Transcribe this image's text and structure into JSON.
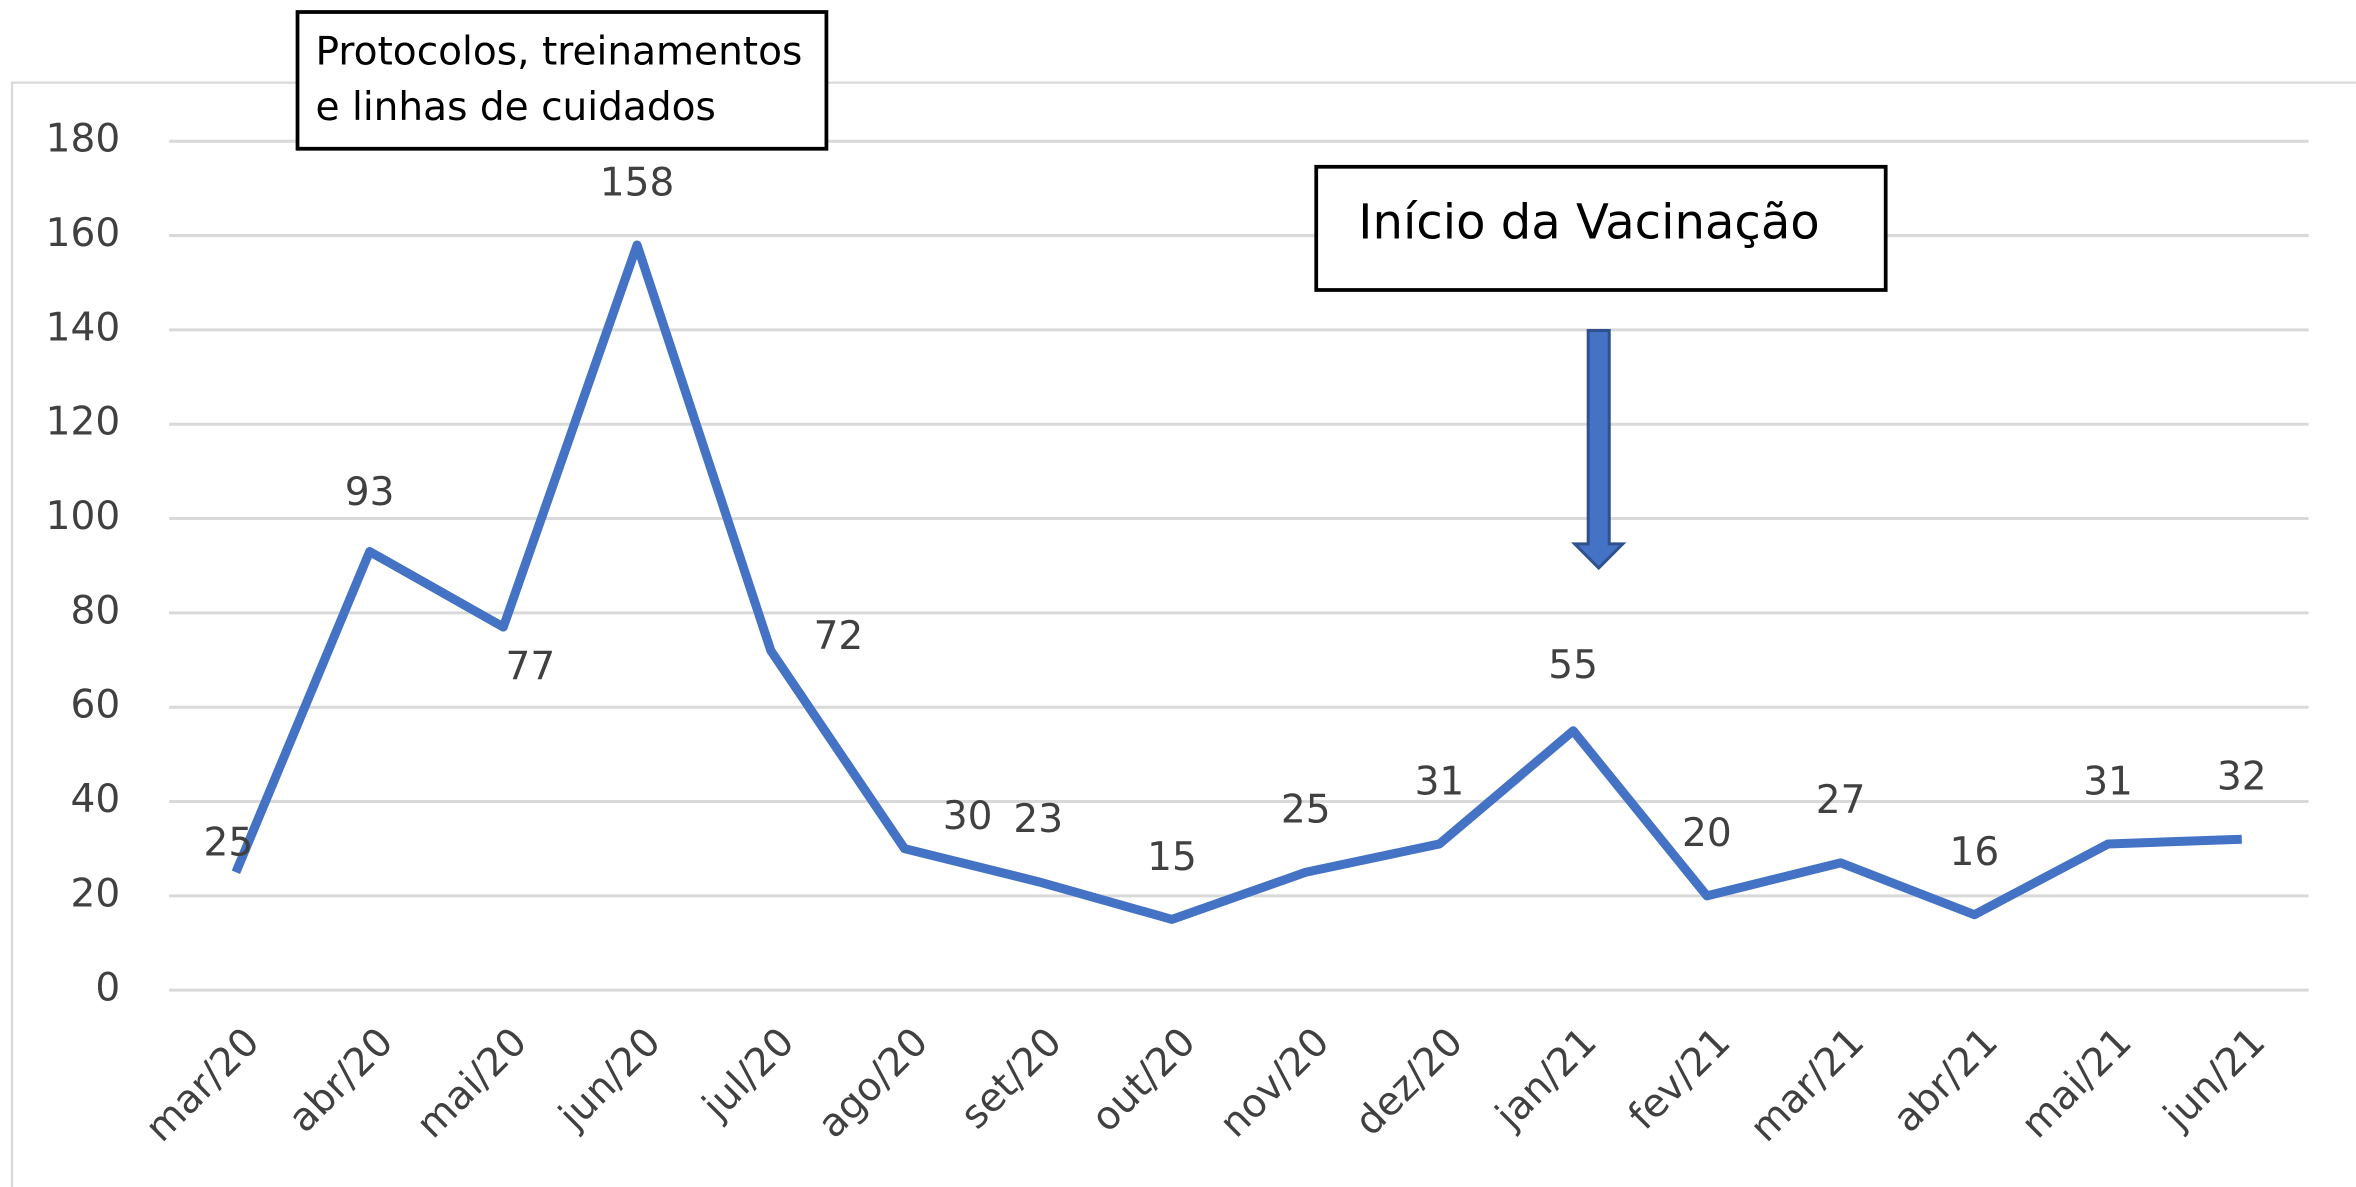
{
  "chart_data": {
    "type": "line",
    "annotations": [
      "Protocolos, treinamentos",
      "e linhas de cuidados",
      "Início da Vacinação"
    ],
    "categories": [
      "mar/20",
      "abr/20",
      "mai/20",
      "jun/20",
      "jul/20",
      "ago/20",
      "set/20",
      "out/20",
      "nov/20",
      "dez/20",
      "jan/21",
      "fev/21",
      "mar/21",
      "abr/21",
      "mai/21",
      "jun/21"
    ],
    "values": [
      25,
      93,
      77,
      158,
      72,
      30,
      23,
      15,
      25,
      31,
      55,
      20,
      27,
      16,
      31,
      32
    ],
    "color": "#4472c4",
    "ylim": [
      0,
      180
    ],
    "yticks": [
      0,
      20,
      40,
      60,
      80,
      100,
      120,
      140,
      160,
      180
    ],
    "grid": true
  }
}
